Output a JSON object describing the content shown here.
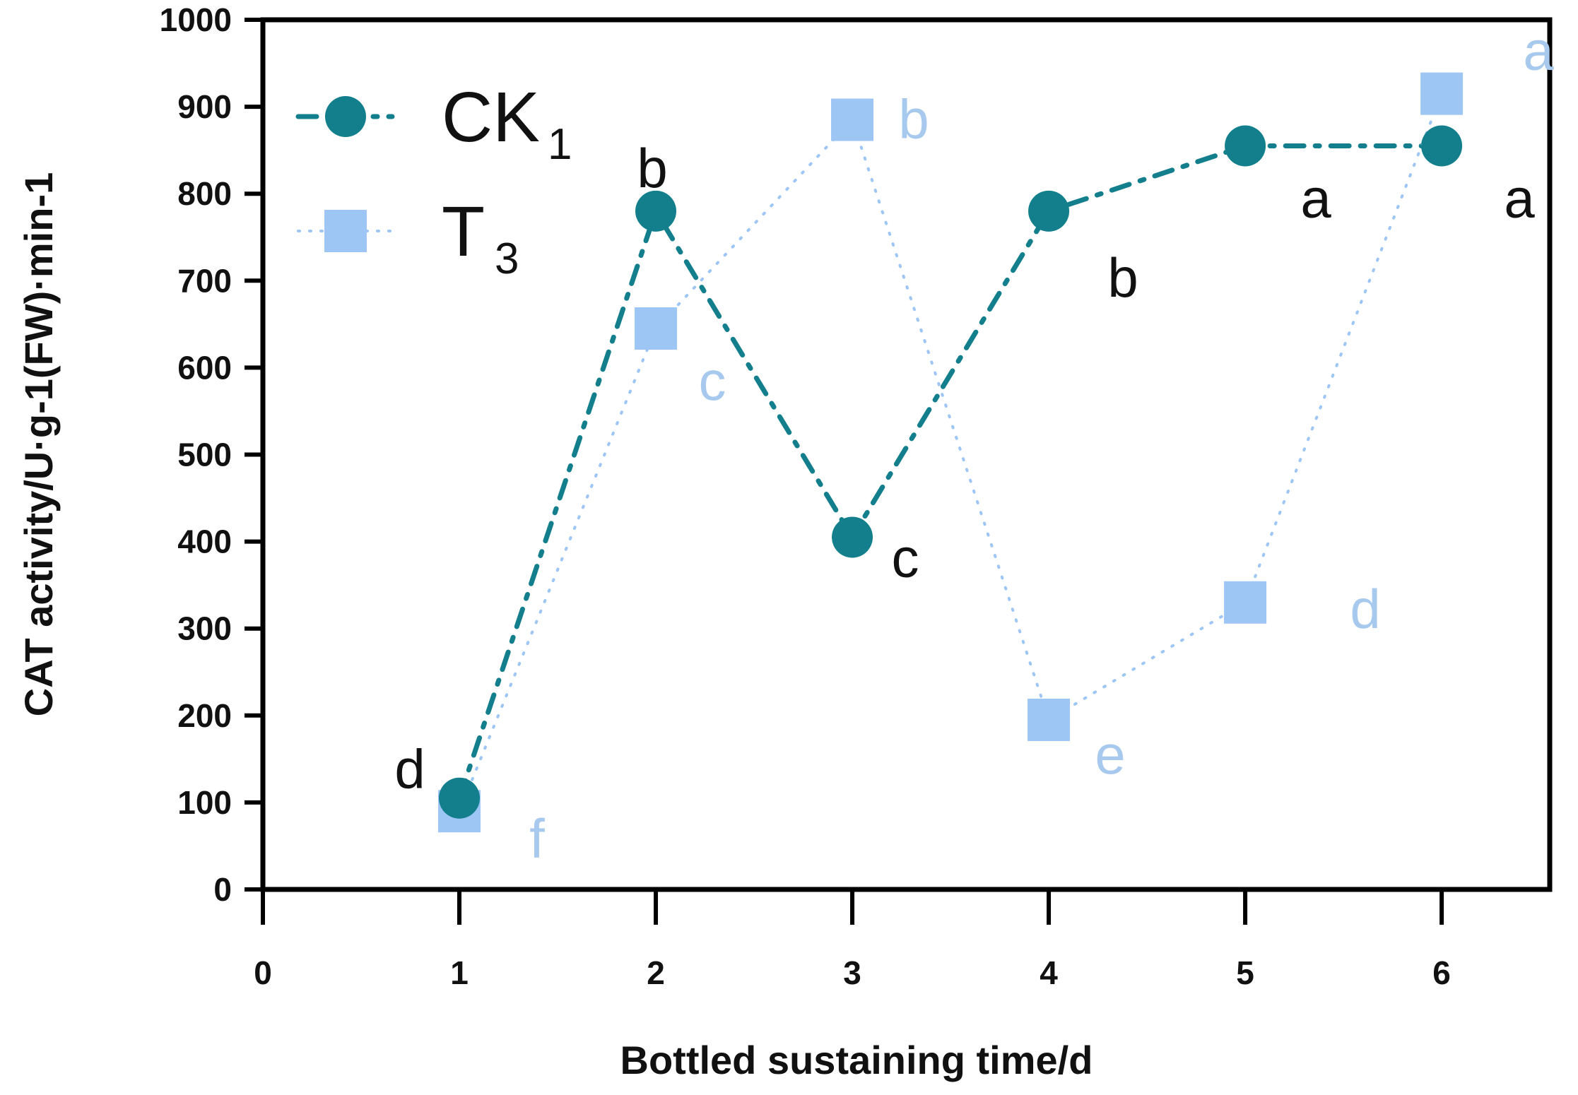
{
  "chart_data": {
    "type": "line",
    "xlabel": "Bottled sustaining time/d",
    "ylabel": "CAT activity/U·g-1(FW)·min-1",
    "xlim": [
      0,
      6.55
    ],
    "ylim": [
      0,
      1000
    ],
    "x_ticks": [
      "0",
      "1",
      "2",
      "3",
      "4",
      "5",
      "6"
    ],
    "y_ticks": [
      "0",
      "100",
      "200",
      "300",
      "400",
      "500",
      "600",
      "700",
      "800",
      "900",
      "1000"
    ],
    "legend_position": "top-left",
    "grid": false,
    "series": [
      {
        "name": "CK",
        "name_subscript": "1",
        "marker": "circle",
        "line_style": "dash-dot",
        "color": "#137f8d",
        "label_color": "#111111",
        "x": [
          1,
          2,
          3,
          4,
          5,
          6
        ],
        "y": [
          105,
          780,
          405,
          780,
          855,
          855
        ],
        "labels": [
          "d",
          "b",
          "c",
          "b",
          "a",
          "a"
        ]
      },
      {
        "name": "T",
        "name_subscript": "3",
        "marker": "square",
        "line_style": "dotted",
        "color": "#9ec6f4",
        "label_color": "#a8c9ee",
        "x": [
          1,
          2,
          3,
          4,
          5,
          6
        ],
        "y": [
          90,
          645,
          885,
          195,
          330,
          915
        ],
        "labels": [
          "f",
          "c",
          "b",
          "e",
          "d",
          "a"
        ]
      }
    ]
  }
}
